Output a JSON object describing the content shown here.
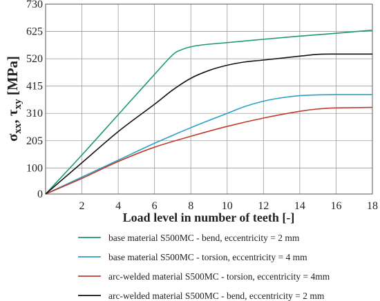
{
  "chart_data": {
    "type": "line",
    "xlabel": "Load level in number of teeth [-]",
    "ylabel": {
      "parts": [
        "σ",
        "xx",
        ", τ",
        "xy",
        " [MPa]"
      ]
    },
    "xlim": [
      0,
      18
    ],
    "ylim": [
      0,
      730
    ],
    "xticks": [
      2,
      4,
      6,
      8,
      10,
      12,
      14,
      16,
      18
    ],
    "yticks": [
      0,
      100,
      205,
      310,
      415,
      520,
      625,
      730
    ],
    "grid": true,
    "legend_position": "bottom",
    "series": [
      {
        "name": "base material S500MC - bend, eccentricity = 2 mm",
        "color": "#1a9a6a",
        "x": [
          0,
          2,
          4,
          6,
          7,
          7.5,
          8,
          8.5,
          9,
          10,
          12,
          14,
          16,
          18
        ],
        "y": [
          0,
          150,
          305,
          460,
          535,
          555,
          566,
          572,
          576,
          582,
          595,
          607,
          618,
          630
        ]
      },
      {
        "name": "base material S500MC - torsion, eccentricity = 4 mm",
        "color": "#2a9fc4",
        "x": [
          0,
          2,
          4,
          6,
          8,
          10,
          11,
          12,
          13,
          14,
          15,
          16,
          17,
          18
        ],
        "y": [
          0,
          65,
          130,
          195,
          255,
          310,
          337,
          357,
          370,
          378,
          381,
          382,
          382,
          382
        ]
      },
      {
        "name": "arc-welded material S500MC - torsion, eccentricity = 4mm",
        "color": "#c0392b",
        "x": [
          0,
          2,
          4,
          6,
          8,
          10,
          12,
          14,
          15,
          16,
          17,
          18
        ],
        "y": [
          0,
          60,
          125,
          180,
          222,
          260,
          292,
          318,
          327,
          331,
          332,
          333
        ]
      },
      {
        "name": "arc-welded material S500MC - bend, eccentricity = 2 mm",
        "color": "#111111",
        "x": [
          0,
          2,
          4,
          6,
          7,
          8,
          9,
          10,
          11,
          12,
          14,
          15,
          16,
          18
        ],
        "y": [
          0,
          120,
          240,
          345,
          400,
          445,
          475,
          495,
          508,
          515,
          530,
          537,
          538,
          538
        ]
      }
    ]
  }
}
